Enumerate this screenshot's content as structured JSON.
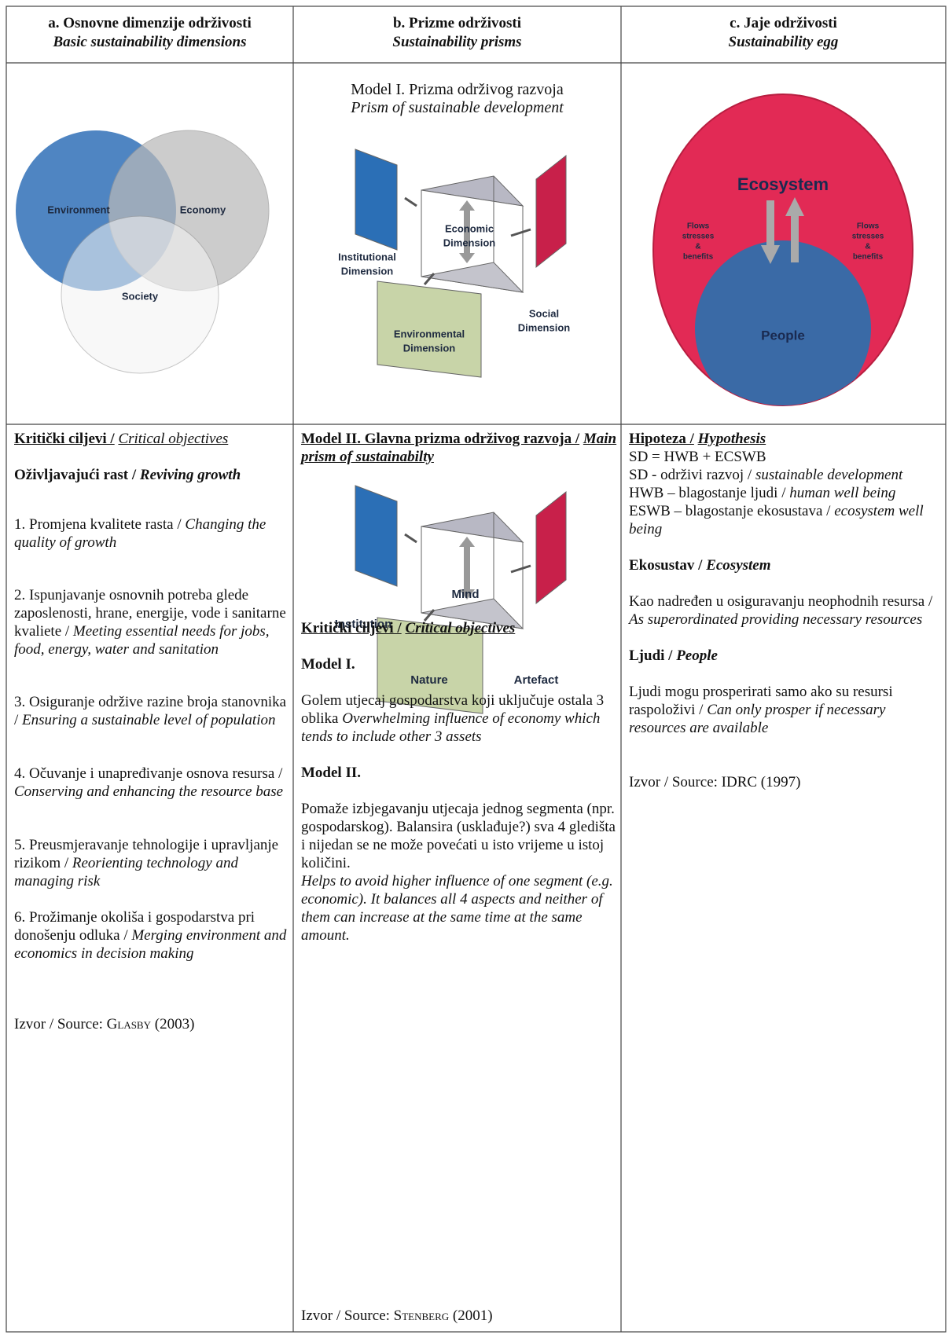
{
  "header": [
    {
      "hr": "a. Osnovne dimenzije održivosti",
      "en": "Basic sustainability dimensions"
    },
    {
      "hr": "b. Prizme održivosti",
      "en": "Sustainability prisms"
    },
    {
      "hr": "c. Jaje održivosti",
      "en": "Sustainability egg"
    }
  ],
  "venn": {
    "labels": [
      "Environment",
      "Economy",
      "Society"
    ]
  },
  "prism1": {
    "title_hr": "Model I. Prizma održivog razvoja",
    "title_en": "Prism of sustainable development",
    "economic": [
      "Economic",
      "Dimension"
    ],
    "institutional": [
      "Institutional",
      "Dimension"
    ],
    "social": [
      "Social",
      "Dimension"
    ],
    "environmental": [
      "Environmental",
      "Dimension"
    ]
  },
  "prism2": {
    "mind": "Mind",
    "institution": "Institution",
    "artefact": "Artefact",
    "nature": "Nature"
  },
  "egg": {
    "ecosystem": "Ecosystem",
    "people": "People",
    "flows_left": [
      "Flows",
      "stresses",
      "&",
      "benefits"
    ],
    "flows_right": [
      "Flows",
      "stresses",
      "&",
      "benefits"
    ]
  },
  "col1": {
    "heading": {
      "hr": "Kritički ciljevi /",
      "en": "Critical objectives"
    },
    "subheading": {
      "hr": "Oživljavajući rast /",
      "en": "Reviving growth"
    },
    "items": [
      {
        "hr": "1. Promjena kvalitete rasta /",
        "en": "Changing the quality of growth"
      },
      {
        "hr": "2. Ispunjavanje osnovnih potreba glede zaposlenosti, hrane, energije, vode i sanitarne kvaliete /",
        "en": "Meeting essential needs for jobs, food, energy, water and sanitation"
      },
      {
        "hr": "3. Osiguranje održive razine broja stanovnika /",
        "en": "Ensuring a sustainable level of population"
      },
      {
        "hr": "4. Očuvanje i unapređivanje osnova resursa /",
        "en": "Conserving and enhancing the resource base"
      },
      {
        "hr": "5. Preusmjeravanje tehnologije i upravljanje rizikom /",
        "en": "Reorienting technology and managing risk"
      },
      {
        "hr": "6. Prožimanje okoliša i gospodarstva pri donošenju odluka /",
        "en": "Merging environment and economics in decision making"
      }
    ],
    "source": {
      "label": "Izvor / Source:",
      "author": "Glasby",
      "year": "(2003)"
    }
  },
  "col2": {
    "heading": {
      "hr": "Model II. Glavna prizma održivog razvoja /",
      "en": "Main prism of sustainabilty"
    },
    "heading2": {
      "hr": "Kritički ciljevi /",
      "en": "Critical objectives"
    },
    "model1": {
      "title": "Model I.",
      "hr": "Golem utjecaj gospodarstva koji uključuje ostala 3 oblika",
      "en": "Overwhelming influence of economy which tends to include other 3 assets"
    },
    "model2": {
      "title": "Model II.",
      "hr": "Pomaže izbjegavanju utjecaja jednog segmenta (npr. gospodarskog). Balansira (usklađuje?) sva 4 gledišta i nijedan se ne može povećati u isto vrijeme u istoj količini.",
      "en": "Helps to avoid higher influence of one segment (e.g. economic). It balances all 4 aspects and neither of them can increase at the same time at the same amount."
    },
    "source": {
      "label": "Izvor / Source:",
      "author": "Stenberg",
      "year": "(2001)"
    }
  },
  "col3": {
    "heading": {
      "hr": "Hipoteza /",
      "en": "Hypothesis"
    },
    "formula": "SD = HWB + ECSWB",
    "defs": [
      {
        "hr": "SD - održivi razvoj /",
        "en": "sustainable development"
      },
      {
        "hr": "HWB – blagostanje ljudi /",
        "en": "human well being"
      },
      {
        "hr": "ESWB – blagostanje ekosustava /",
        "en": "ecosystem well being"
      }
    ],
    "ecosystem": {
      "title_hr": "Ekosustav /",
      "title_en": "Ecosystem",
      "hr": "Kao nadređen u osiguravanju neophodnih resursa /",
      "en": "As superordinated providing necessary resources"
    },
    "people": {
      "title_hr": "Ljudi /",
      "title_en": "People",
      "hr": "Ljudi mogu prosperirati samo ako su resursi raspoloživi /",
      "en": "Can only prosper if necessary resources are available"
    },
    "source": "Izvor / Source: IDRC (1997)"
  }
}
